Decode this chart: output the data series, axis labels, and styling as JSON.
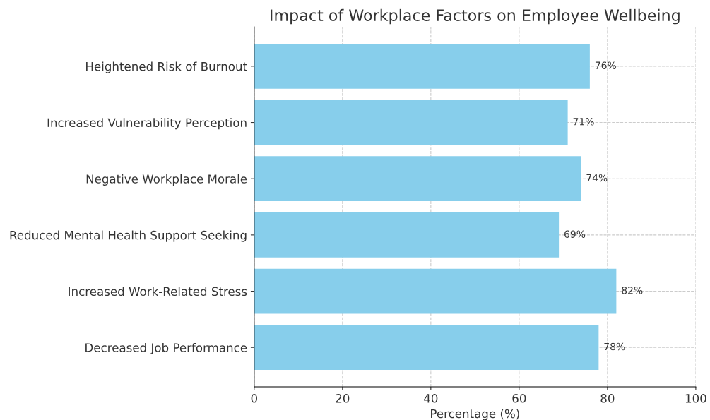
{
  "chart_data": {
    "type": "bar",
    "orientation": "horizontal",
    "title": "Impact of Workplace Factors on Employee Wellbeing",
    "xlabel": "Percentage (%)",
    "categories": [
      "Heightened Risk of Burnout",
      "Increased Vulnerability Perception",
      "Negative Workplace Morale",
      "Reduced Mental Health Support Seeking",
      "Increased Work-Related Stress",
      "Decreased Job Performance"
    ],
    "values": [
      76,
      71,
      74,
      69,
      82,
      78
    ],
    "value_labels": [
      "76%",
      "71%",
      "74%",
      "69%",
      "82%",
      "78%"
    ],
    "color": "#87ceeb",
    "xlim": [
      0,
      100
    ],
    "xticks": [
      0,
      20,
      40,
      60,
      80,
      100
    ],
    "grid": true
  }
}
